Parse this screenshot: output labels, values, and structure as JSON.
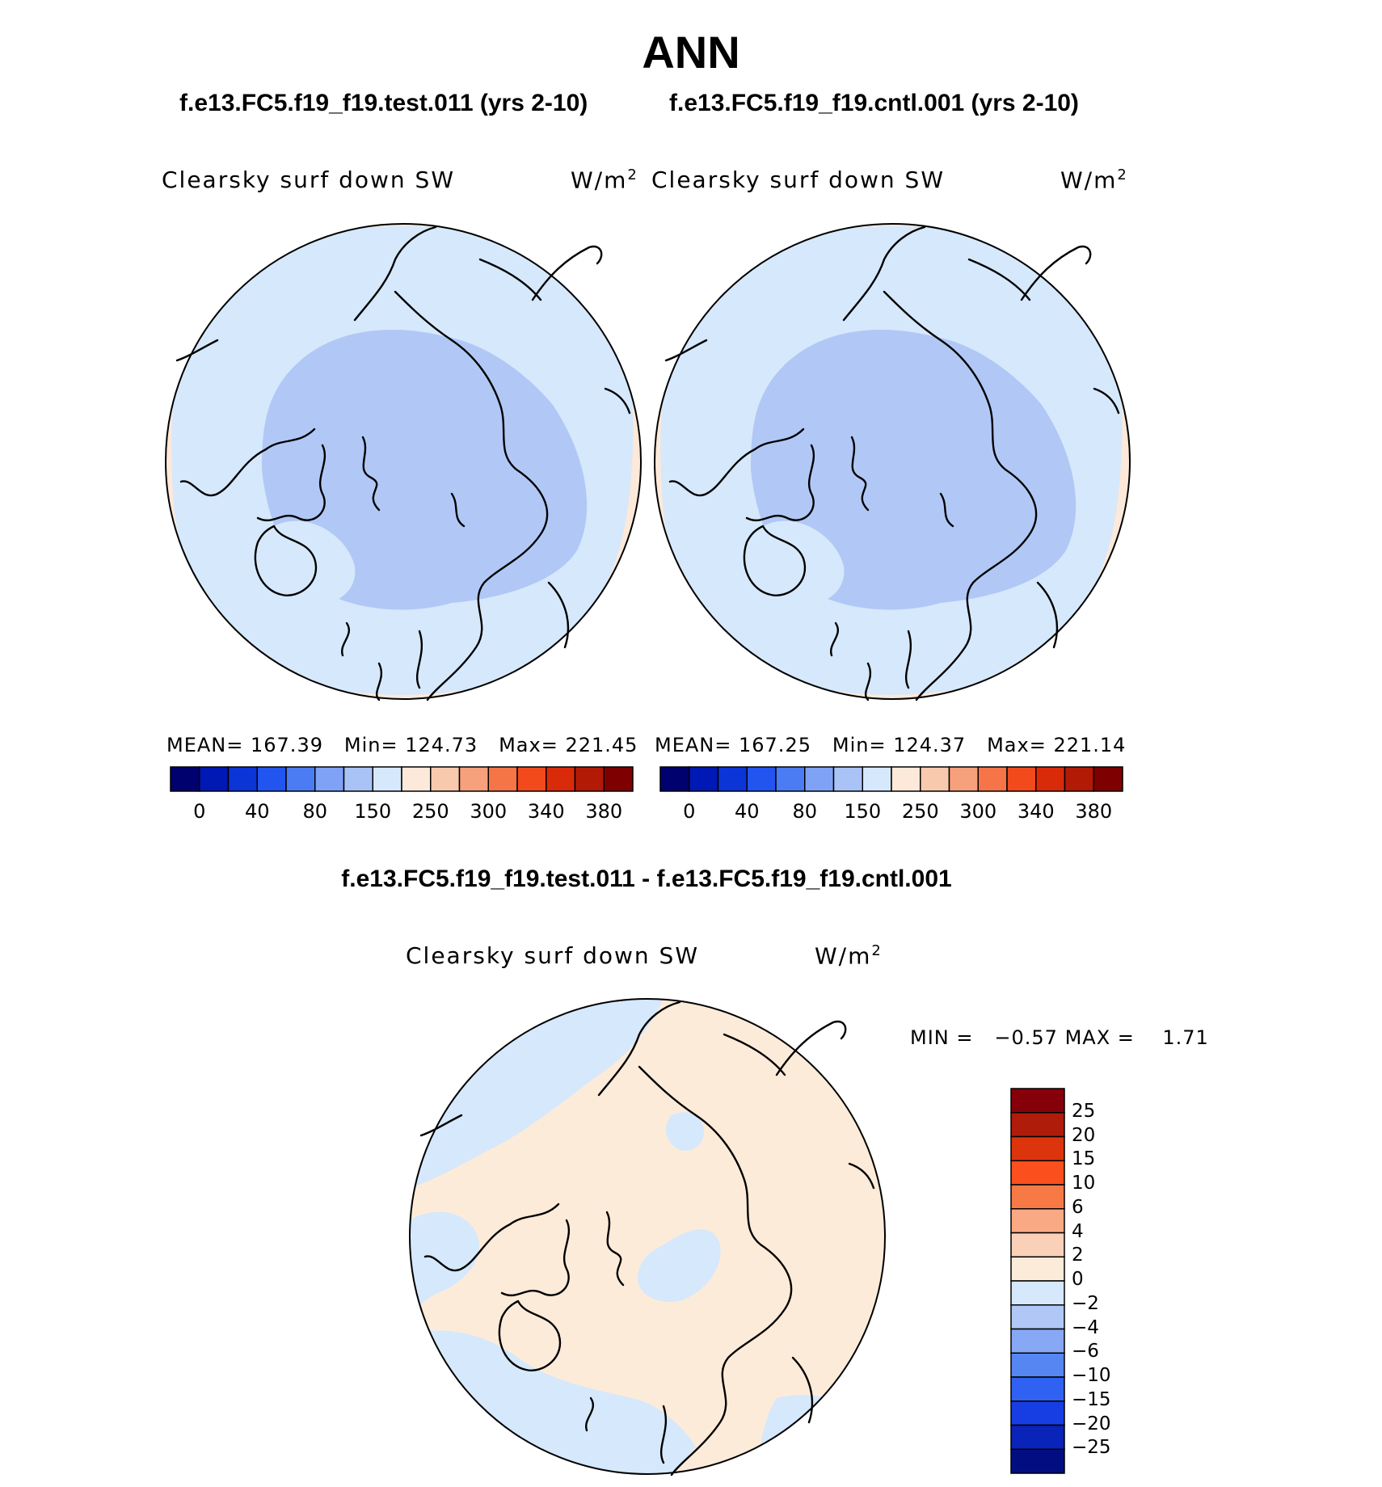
{
  "title": "ANN",
  "panels": [
    {
      "case_title": "f.e13.FC5.f19_f19.test.011 (yrs 2-10)",
      "label": "Clearsky surf down SW",
      "units_base": "W/m",
      "units_exp": "2",
      "stats": {
        "mean_label": "MEAN=",
        "mean": "167.39",
        "min_label": "Min=",
        "min": "124.73",
        "max_label": "Max=",
        "max": "221.45"
      }
    },
    {
      "case_title": "f.e13.FC5.f19_f19.cntl.001 (yrs 2-10)",
      "label": "Clearsky surf down SW",
      "units_base": "W/m",
      "units_exp": "2",
      "stats": {
        "mean_label": "MEAN=",
        "mean": "167.25",
        "min_label": "Min=",
        "min": "124.37",
        "max_label": "Max=",
        "max": "221.14"
      }
    }
  ],
  "difference": {
    "title": "f.e13.FC5.f19_f19.test.011 - f.e13.FC5.f19_f19.cntl.001",
    "label": "Clearsky surf down SW",
    "units_base": "W/m",
    "units_exp": "2",
    "min_label": "MIN =",
    "min": "−0.57",
    "max_label": "MAX =",
    "max": "1.71"
  },
  "colorbar_main": {
    "colors": [
      "#00006e",
      "#0018b4",
      "#0c35d8",
      "#2255f0",
      "#4c7cf4",
      "#7fa2f6",
      "#a9c3f7",
      "#d6e8fb",
      "#fde9d9",
      "#f9c9ad",
      "#f6a07c",
      "#f57548",
      "#f24a1c",
      "#d92b0a",
      "#b21a06",
      "#7e0000"
    ],
    "labels": [
      "0",
      "40",
      "80",
      "150",
      "250",
      "300",
      "340",
      "380"
    ]
  },
  "colorbar_diff": {
    "colors": [
      "#86000a",
      "#b01c0a",
      "#dc340c",
      "#fb4f1d",
      "#f77a46",
      "#f9a983",
      "#fad0b8",
      "#fdebd9",
      "#d6e8fb",
      "#b1c8f6",
      "#86a8f5",
      "#5686f1",
      "#2f62f2",
      "#173ee3",
      "#0a23b9",
      "#030d82"
    ],
    "labels": [
      "25",
      "20",
      "15",
      "10",
      "6",
      "4",
      "2",
      "0",
      "−2",
      "−4",
      "−6",
      "−10",
      "−15",
      "−20",
      "−25"
    ]
  },
  "fills": {
    "outer_ring": "#fde9d9",
    "mid_band": "#d6e8fb",
    "polar_core": "#b1c8f6",
    "diff_base": "#fdebd9",
    "diff_negative": "#d6e8fb"
  }
}
